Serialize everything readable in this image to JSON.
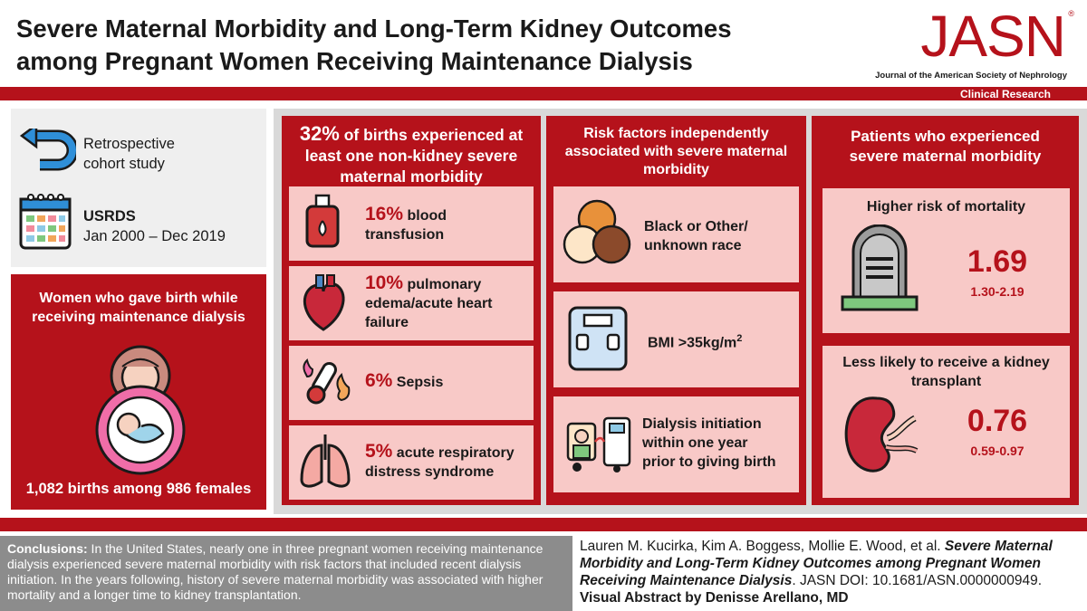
{
  "header": {
    "title_line1": "Severe Maternal Morbidity and Long-Term Kidney Outcomes",
    "title_line2": "among Pregnant Women Receiving Maintenance Dialysis",
    "logo_word": "JASN",
    "logo_reg": "®",
    "logo_subtitle": "Journal of the American Society of Nephrology",
    "section_label": "Clinical Research"
  },
  "study": {
    "design_line1": "Retrospective",
    "design_line2": "cohort study",
    "source": "USRDS",
    "period": "Jan 2000 – Dec 2019"
  },
  "population": {
    "heading_line1": "Women who gave birth while",
    "heading_line2": "receiving maintenance dialysis",
    "count": "1,082 births among 986 females"
  },
  "births_panel": {
    "headline_pct": "32%",
    "headline_rest1": " of births experienced at",
    "headline_rest2": "least one non-kidney severe",
    "headline_rest3": "maternal morbidity",
    "items": [
      {
        "pct": "16%",
        "text1": " blood",
        "text2": "transfusion",
        "text3": ""
      },
      {
        "pct": "10%",
        "text1": " pulmonary",
        "text2": "edema/acute heart",
        "text3": "failure"
      },
      {
        "pct": "6%",
        "text1": " Sepsis",
        "text2": "",
        "text3": ""
      },
      {
        "pct": "5%",
        "text1": " acute respiratory",
        "text2": "distress syndrome",
        "text3": ""
      }
    ]
  },
  "risk_panel": {
    "heading_line1": "Risk factors independently",
    "heading_line2": "associated with severe maternal",
    "heading_line3": "morbidity",
    "item1_line1": "Black or Other/",
    "item1_line2": "unknown race",
    "item2_text": "BMI >35kg/m",
    "item2_sup": "2",
    "item3_line1": "Dialysis initiation",
    "item3_line2": "within one year",
    "item3_line3": "prior to giving birth"
  },
  "outcome_panel": {
    "heading_line1": "Patients who experienced",
    "heading_line2": "severe maternal morbidity",
    "mortality_label": "Higher risk of mortality",
    "mortality_value": "1.69",
    "mortality_ci": "1.30-2.19",
    "transplant_label_line1": "Less likely to receive a kidney",
    "transplant_label_line2": "transplant",
    "transplant_value": "0.76",
    "transplant_ci": "0.59-0.97"
  },
  "footer": {
    "conclusions_label": "Conclusions:",
    "conclusions_text": " In the United States, nearly one in three pregnant women receiving maintenance dialysis experienced severe maternal morbidity with risk factors that included recent dialysis initiation. In the years following, history of severe maternal morbidity was associated with higher mortality and a longer time to kidney transplantation.",
    "citation_authors": "Lauren M. Kucirka, Kim A. Boggess, Mollie E. Wood, et al. ",
    "citation_title": "Severe Maternal Morbidity and Long-Term Kidney Outcomes among Pregnant Women Receiving Maintenance Dialysis",
    "citation_doi": ". JASN DOI: 10.1681/ASN.0000000949. ",
    "citation_credit": "Visual Abstract by Denisse Arellano, MD"
  },
  "colors": {
    "brand_red": "#b5121b",
    "card_pink": "#f8c9c7",
    "panel_gray": "#d9d9d9"
  }
}
